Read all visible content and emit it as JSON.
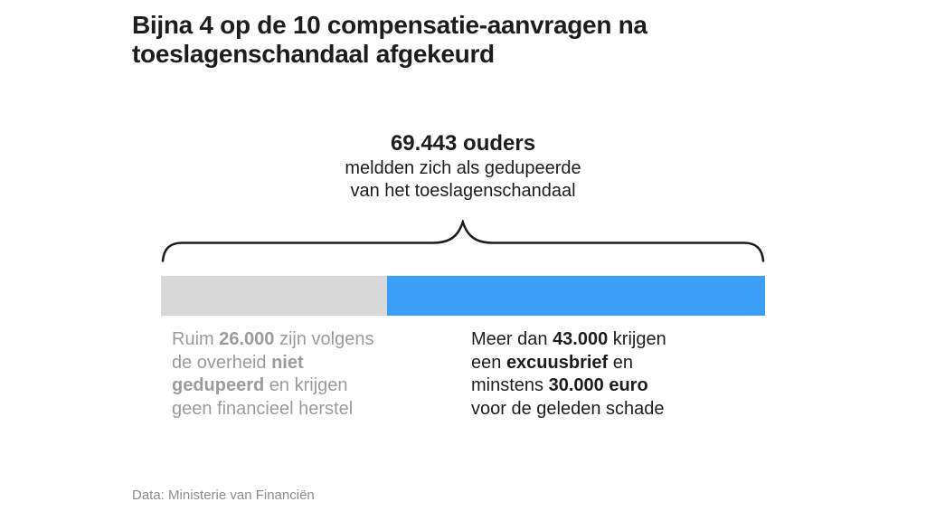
{
  "header": {
    "title_lines": [
      "Bijna 4 op de 10 compensatie-aanvragen na",
      "toeslagenschandaal afgekeurd"
    ]
  },
  "annotation": {
    "total_label": "69.443 ouders",
    "total_sublines": [
      "meldden zich als gedupeerde",
      "van het toeslagenschandaal"
    ]
  },
  "chart_data": {
    "type": "bar",
    "orientation": "horizontal",
    "title": "Bijna 4 op de 10 compensatie-aanvragen na toeslagenschandaal afgekeurd",
    "axis": "none",
    "grid": false,
    "total": {
      "value": 69443,
      "label": "69.443 ouders",
      "description": "meldden zich als gedupeerde van het toeslagenschandaal"
    },
    "segments": [
      {
        "name": "niet gedupeerd - afgekeurd",
        "qualifier": "Ruim",
        "value": 26000,
        "share_pct": "37.4%",
        "color": "#d8d8d8",
        "description": "Ruim 26.000 zijn volgens de overheid niet gedupeerd en krijgen geen financieel herstel"
      },
      {
        "name": "gedupeerd - gecompenseerd",
        "qualifier": "Meer dan",
        "value": 43000,
        "share_pct": "62.6%",
        "color": "#3b9ff7",
        "description": "Meer dan 43.000 krijgen een excuusbrief en minstens 30.000 euro voor de geleden schade"
      }
    ],
    "source": "Data: Ministerie van Financiën"
  },
  "captions": {
    "left_lines": [
      [
        {
          "t": "Ruim "
        },
        {
          "t": "26.000",
          "b": true
        },
        {
          "t": " zijn volgens"
        }
      ],
      [
        {
          "t": "de overheid "
        },
        {
          "t": "niet",
          "b": true
        }
      ],
      [
        {
          "t": "gedupeerd",
          "b": true
        },
        {
          "t": " en krijgen"
        }
      ],
      [
        {
          "t": "geen financieel herstel"
        }
      ]
    ],
    "right_lines": [
      [
        {
          "t": "Meer dan "
        },
        {
          "t": "43.000",
          "b": true
        },
        {
          "t": " krijgen"
        }
      ],
      [
        {
          "t": "een "
        },
        {
          "t": "excuusbrief",
          "b": true
        },
        {
          "t": " en"
        }
      ],
      [
        {
          "t": "minstens "
        },
        {
          "t": "30.000 euro",
          "b": true
        }
      ],
      [
        {
          "t": "voor de geleden schade"
        }
      ]
    ]
  },
  "footer": {
    "source": "Data: Ministerie van Financiën"
  },
  "colors": {
    "bar_rejected": "#d8d8d8",
    "bar_compensated": "#3b9ff7",
    "text_dark": "#1d1d1b",
    "text_gray": "#9b9b9b",
    "brace": "#1d1d1b",
    "background": "#ffffff"
  }
}
